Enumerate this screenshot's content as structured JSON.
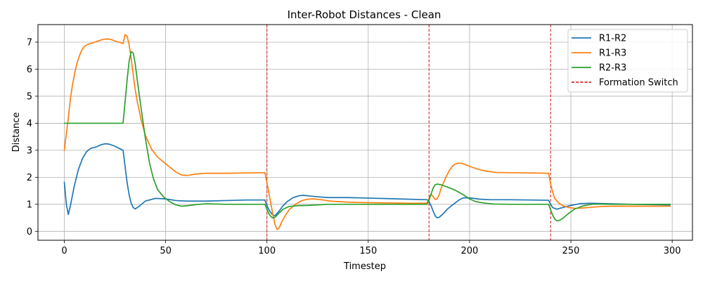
{
  "chart_data": {
    "type": "line",
    "title": "Inter-Robot Distances - Clean",
    "xlabel": "Timestep",
    "ylabel": "Distance",
    "xlim": [
      -13,
      310
    ],
    "ylim": [
      -0.33,
      7.65
    ],
    "xticks": [
      0,
      50,
      100,
      150,
      200,
      250,
      300
    ],
    "yticks": [
      0,
      1,
      2,
      3,
      4,
      5,
      6,
      7
    ],
    "grid": true,
    "legend_position": "top-right",
    "vlines": {
      "name": "Formation Switch",
      "x": [
        100,
        180,
        240
      ],
      "color": "#d62728",
      "style": "dashed"
    },
    "series": [
      {
        "name": "R1-R2",
        "color": "#1f77b4",
        "points": [
          [
            0,
            1.82
          ],
          [
            1,
            1.0
          ],
          [
            2,
            0.62
          ],
          [
            3,
            0.95
          ],
          [
            5,
            1.7
          ],
          [
            7,
            2.3
          ],
          [
            9,
            2.7
          ],
          [
            11,
            2.95
          ],
          [
            13,
            3.07
          ],
          [
            16,
            3.13
          ],
          [
            18,
            3.2
          ],
          [
            20,
            3.24
          ],
          [
            22,
            3.23
          ],
          [
            25,
            3.15
          ],
          [
            27,
            3.07
          ],
          [
            29,
            3.0
          ],
          [
            30,
            2.4
          ],
          [
            31,
            1.8
          ],
          [
            32,
            1.35
          ],
          [
            33,
            1.05
          ],
          [
            34,
            0.88
          ],
          [
            35,
            0.83
          ],
          [
            37,
            0.93
          ],
          [
            40,
            1.12
          ],
          [
            45,
            1.22
          ],
          [
            50,
            1.2
          ],
          [
            55,
            1.14
          ],
          [
            60,
            1.12
          ],
          [
            70,
            1.12
          ],
          [
            80,
            1.14
          ],
          [
            90,
            1.16
          ],
          [
            99,
            1.16
          ],
          [
            100,
            0.95
          ],
          [
            101,
            0.8
          ],
          [
            102,
            0.68
          ],
          [
            103,
            0.6
          ],
          [
            104,
            0.58
          ],
          [
            106,
            0.75
          ],
          [
            108,
            0.95
          ],
          [
            110,
            1.1
          ],
          [
            113,
            1.25
          ],
          [
            116,
            1.32
          ],
          [
            118,
            1.33
          ],
          [
            121,
            1.31
          ],
          [
            125,
            1.28
          ],
          [
            130,
            1.25
          ],
          [
            140,
            1.25
          ],
          [
            160,
            1.21
          ],
          [
            179,
            1.17
          ],
          [
            180,
            1.1
          ],
          [
            181,
            0.95
          ],
          [
            182,
            0.75
          ],
          [
            183,
            0.58
          ],
          [
            184,
            0.5
          ],
          [
            185,
            0.52
          ],
          [
            187,
            0.65
          ],
          [
            189,
            0.82
          ],
          [
            192,
            1.0
          ],
          [
            195,
            1.17
          ],
          [
            197,
            1.24
          ],
          [
            200,
            1.24
          ],
          [
            205,
            1.19
          ],
          [
            210,
            1.17
          ],
          [
            220,
            1.17
          ],
          [
            230,
            1.16
          ],
          [
            239,
            1.15
          ],
          [
            240,
            1.0
          ],
          [
            241,
            0.88
          ],
          [
            243,
            0.82
          ],
          [
            246,
            0.88
          ],
          [
            250,
            0.96
          ],
          [
            255,
            1.03
          ],
          [
            260,
            1.04
          ],
          [
            270,
            1.02
          ],
          [
            280,
            1.0
          ],
          [
            299,
            0.98
          ]
        ]
      },
      {
        "name": "R1-R3",
        "color": "#ff7f0e",
        "points": [
          [
            0,
            3.0
          ],
          [
            1,
            3.6
          ],
          [
            2,
            4.2
          ],
          [
            3,
            4.9
          ],
          [
            4,
            5.4
          ],
          [
            5,
            5.8
          ],
          [
            6,
            6.15
          ],
          [
            7,
            6.4
          ],
          [
            8,
            6.6
          ],
          [
            9,
            6.75
          ],
          [
            10,
            6.85
          ],
          [
            12,
            6.93
          ],
          [
            14,
            6.97
          ],
          [
            17,
            7.05
          ],
          [
            19,
            7.1
          ],
          [
            21,
            7.12
          ],
          [
            23,
            7.1
          ],
          [
            26,
            7.02
          ],
          [
            29,
            6.95
          ],
          [
            30,
            7.28
          ],
          [
            31,
            7.22
          ],
          [
            32,
            6.9
          ],
          [
            33,
            6.4
          ],
          [
            34,
            5.8
          ],
          [
            35,
            5.25
          ],
          [
            36,
            4.8
          ],
          [
            38,
            4.1
          ],
          [
            40,
            3.55
          ],
          [
            43,
            3.05
          ],
          [
            46,
            2.75
          ],
          [
            50,
            2.5
          ],
          [
            55,
            2.2
          ],
          [
            58,
            2.08
          ],
          [
            61,
            2.07
          ],
          [
            65,
            2.12
          ],
          [
            70,
            2.15
          ],
          [
            80,
            2.15
          ],
          [
            90,
            2.16
          ],
          [
            99,
            2.17
          ],
          [
            100,
            1.8
          ],
          [
            101,
            1.4
          ],
          [
            102,
            1.0
          ],
          [
            103,
            0.6
          ],
          [
            104,
            0.25
          ],
          [
            105,
            0.07
          ],
          [
            106,
            0.12
          ],
          [
            107,
            0.3
          ],
          [
            109,
            0.58
          ],
          [
            111,
            0.8
          ],
          [
            114,
            1.0
          ],
          [
            117,
            1.13
          ],
          [
            120,
            1.19
          ],
          [
            123,
            1.2
          ],
          [
            127,
            1.17
          ],
          [
            131,
            1.12
          ],
          [
            140,
            1.08
          ],
          [
            150,
            1.06
          ],
          [
            160,
            1.05
          ],
          [
            170,
            1.04
          ],
          [
            179,
            1.04
          ],
          [
            180,
            1.22
          ],
          [
            181,
            1.38
          ],
          [
            182,
            1.28
          ],
          [
            183,
            1.18
          ],
          [
            184,
            1.2
          ],
          [
            185,
            1.35
          ],
          [
            186,
            1.6
          ],
          [
            188,
            1.95
          ],
          [
            190,
            2.25
          ],
          [
            192,
            2.45
          ],
          [
            194,
            2.52
          ],
          [
            196,
            2.52
          ],
          [
            198,
            2.47
          ],
          [
            201,
            2.38
          ],
          [
            204,
            2.3
          ],
          [
            208,
            2.23
          ],
          [
            213,
            2.18
          ],
          [
            220,
            2.17
          ],
          [
            230,
            2.16
          ],
          [
            239,
            2.15
          ],
          [
            240,
            1.75
          ],
          [
            241,
            1.45
          ],
          [
            242,
            1.22
          ],
          [
            244,
            1.05
          ],
          [
            246,
            0.95
          ],
          [
            249,
            0.88
          ],
          [
            252,
            0.85
          ],
          [
            255,
            0.86
          ],
          [
            260,
            0.89
          ],
          [
            265,
            0.92
          ],
          [
            270,
            0.93
          ],
          [
            280,
            0.93
          ],
          [
            299,
            0.93
          ]
        ]
      },
      {
        "name": "R2-R3",
        "color": "#2ca02c",
        "points": [
          [
            0,
            4.0
          ],
          [
            10,
            4.0
          ],
          [
            20,
            4.0
          ],
          [
            29,
            4.0
          ],
          [
            30,
            4.8
          ],
          [
            31,
            5.6
          ],
          [
            32,
            6.3
          ],
          [
            33,
            6.65
          ],
          [
            34,
            6.6
          ],
          [
            35,
            6.2
          ],
          [
            36,
            5.6
          ],
          [
            38,
            4.5
          ],
          [
            40,
            3.45
          ],
          [
            42,
            2.55
          ],
          [
            44,
            1.95
          ],
          [
            46,
            1.55
          ],
          [
            49,
            1.27
          ],
          [
            52,
            1.1
          ],
          [
            55,
            0.98
          ],
          [
            58,
            0.93
          ],
          [
            61,
            0.95
          ],
          [
            65,
            0.99
          ],
          [
            70,
            1.02
          ],
          [
            80,
            1.0
          ],
          [
            90,
            1.0
          ],
          [
            99,
            1.0
          ],
          [
            100,
            0.82
          ],
          [
            101,
            0.65
          ],
          [
            102,
            0.54
          ],
          [
            103,
            0.5
          ],
          [
            104,
            0.52
          ],
          [
            106,
            0.68
          ],
          [
            108,
            0.82
          ],
          [
            111,
            0.92
          ],
          [
            115,
            0.95
          ],
          [
            120,
            0.96
          ],
          [
            125,
            0.98
          ],
          [
            130,
            1.0
          ],
          [
            150,
            1.0
          ],
          [
            170,
            1.0
          ],
          [
            179,
            1.0
          ],
          [
            180,
            1.15
          ],
          [
            181,
            1.38
          ],
          [
            182,
            1.6
          ],
          [
            183,
            1.72
          ],
          [
            184,
            1.75
          ],
          [
            186,
            1.72
          ],
          [
            189,
            1.64
          ],
          [
            193,
            1.52
          ],
          [
            197,
            1.35
          ],
          [
            200,
            1.2
          ],
          [
            203,
            1.1
          ],
          [
            207,
            1.05
          ],
          [
            212,
            1.01
          ],
          [
            220,
            1.0
          ],
          [
            230,
            1.0
          ],
          [
            239,
            1.0
          ],
          [
            240,
            0.8
          ],
          [
            241,
            0.6
          ],
          [
            242,
            0.46
          ],
          [
            243,
            0.39
          ],
          [
            244,
            0.39
          ],
          [
            246,
            0.48
          ],
          [
            249,
            0.67
          ],
          [
            252,
            0.83
          ],
          [
            256,
            0.94
          ],
          [
            260,
            1.0
          ],
          [
            265,
            1.01
          ],
          [
            270,
            1.0
          ],
          [
            299,
            1.0
          ]
        ]
      }
    ]
  }
}
